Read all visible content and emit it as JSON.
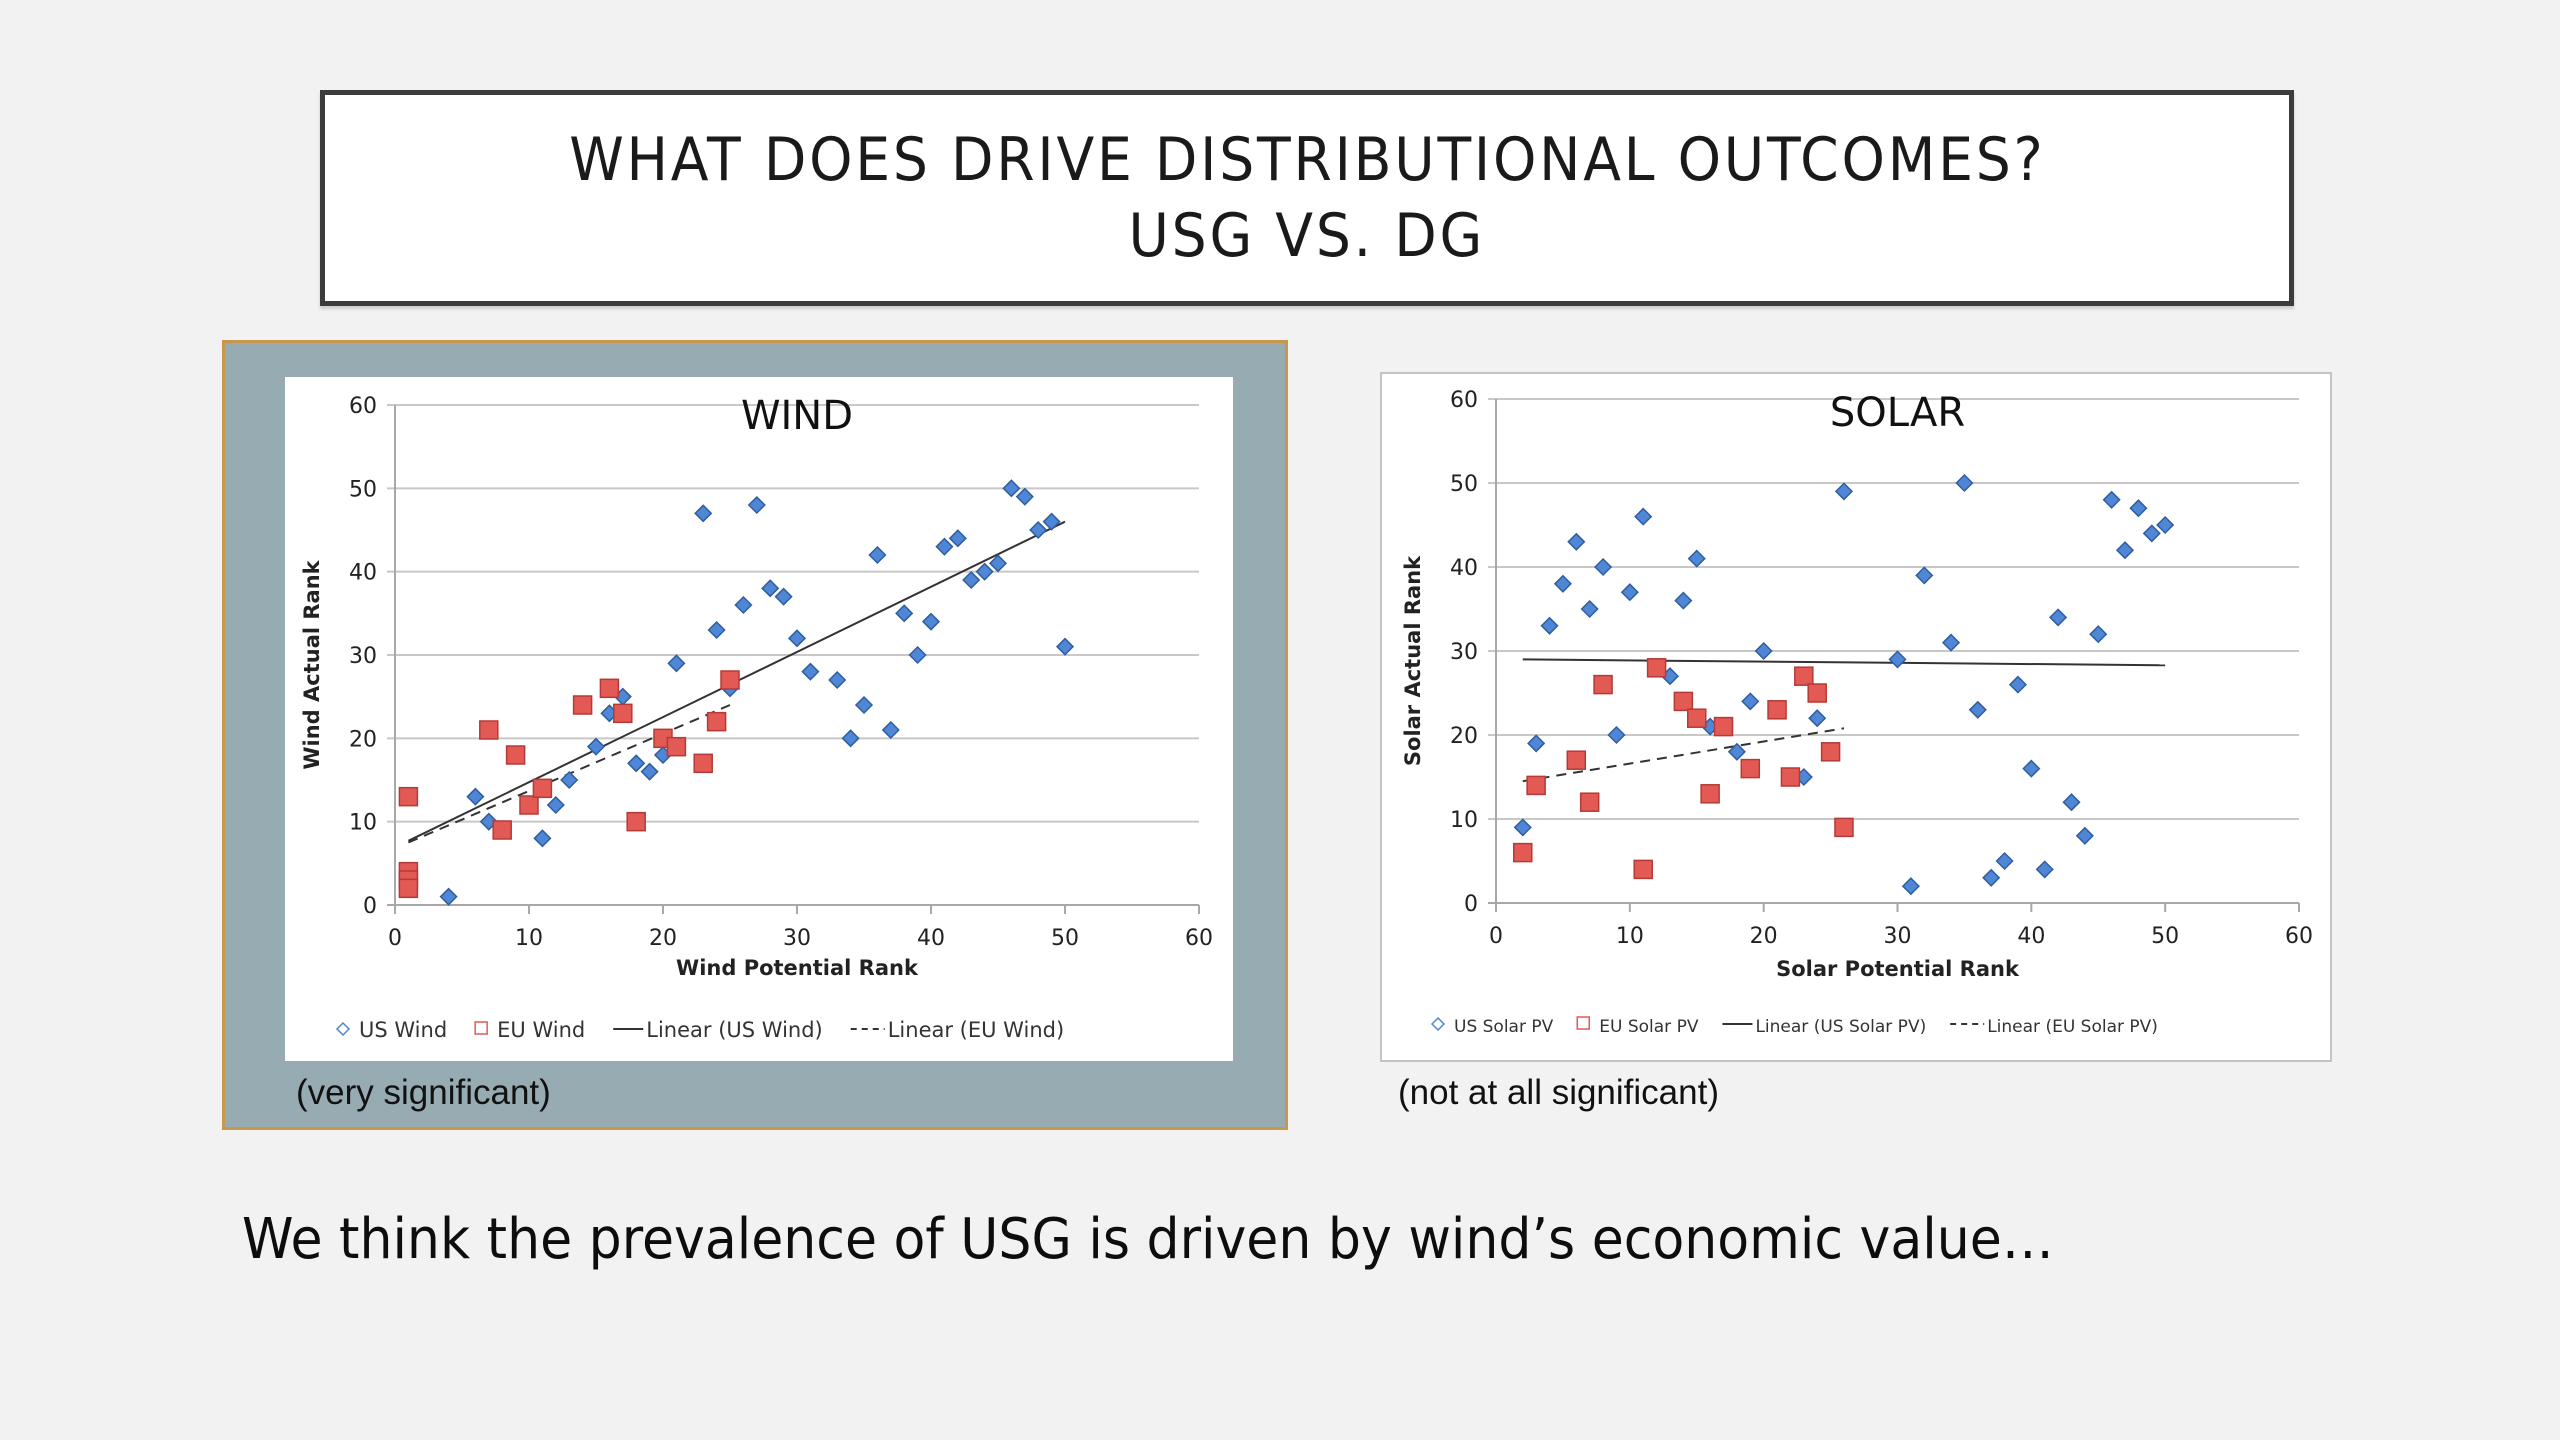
{
  "slide": {
    "title_line1": "WHAT DOES DRIVE DISTRIBUTIONAL OUTCOMES?",
    "title_line2": "USG VS. DG",
    "wind_caption": "(very significant)",
    "solar_caption": "(not at all significant)",
    "bottom_text": "We think the prevalence of USG is driven by wind’s economic value…"
  },
  "colors": {
    "us_marker": "#4f86d6",
    "us_marker_stroke": "#2f5e9e",
    "eu_marker": "#e35a55",
    "eu_marker_stroke": "#b33a36",
    "trend_line": "#333333",
    "grid": "#c8c8c8",
    "wind_frame_bg": "#97abb3",
    "wind_frame_border": "#c8974a"
  },
  "chart_data": [
    {
      "type": "scatter",
      "title": "WIND",
      "xlabel": "Wind Potential Rank",
      "ylabel": "Wind Actual Rank",
      "xlim": [
        0,
        60
      ],
      "ylim": [
        0,
        60
      ],
      "xticks": [
        "0",
        "10",
        "20",
        "30",
        "40",
        "50",
        "60"
      ],
      "yticks": [
        "0",
        "10",
        "20",
        "30",
        "40",
        "50",
        "60"
      ],
      "grid": "horizontal",
      "legend_position": "bottom",
      "legend": [
        "US Wind",
        "EU Wind",
        "Linear (US Wind)",
        "Linear (EU Wind)"
      ],
      "series": [
        {
          "name": "US Wind",
          "marker": "diamond",
          "points": [
            [
              4,
              1
            ],
            [
              6,
              13
            ],
            [
              7,
              10
            ],
            [
              11,
              8
            ],
            [
              12,
              12
            ],
            [
              13,
              15
            ],
            [
              15,
              19
            ],
            [
              16,
              23
            ],
            [
              17,
              25
            ],
            [
              18,
              17
            ],
            [
              19,
              16
            ],
            [
              20,
              18
            ],
            [
              21,
              29
            ],
            [
              23,
              47
            ],
            [
              24,
              33
            ],
            [
              25,
              26
            ],
            [
              26,
              36
            ],
            [
              27,
              48
            ],
            [
              28,
              38
            ],
            [
              29,
              37
            ],
            [
              30,
              32
            ],
            [
              31,
              28
            ],
            [
              33,
              27
            ],
            [
              34,
              20
            ],
            [
              35,
              24
            ],
            [
              36,
              42
            ],
            [
              37,
              21
            ],
            [
              38,
              35
            ],
            [
              39,
              30
            ],
            [
              40,
              34
            ],
            [
              41,
              43
            ],
            [
              42,
              44
            ],
            [
              43,
              39
            ],
            [
              44,
              40
            ],
            [
              45,
              41
            ],
            [
              46,
              50
            ],
            [
              47,
              49
            ],
            [
              48,
              45
            ],
            [
              49,
              46
            ],
            [
              50,
              31
            ]
          ]
        },
        {
          "name": "EU Wind",
          "marker": "square",
          "points": [
            [
              1,
              13
            ],
            [
              1,
              4
            ],
            [
              1,
              3
            ],
            [
              1,
              2
            ],
            [
              7,
              21
            ],
            [
              8,
              9
            ],
            [
              9,
              18
            ],
            [
              10,
              12
            ],
            [
              11,
              14
            ],
            [
              14,
              24
            ],
            [
              16,
              26
            ],
            [
              17,
              23
            ],
            [
              18,
              10
            ],
            [
              20,
              20
            ],
            [
              21,
              19
            ],
            [
              23,
              17
            ],
            [
              24,
              22
            ],
            [
              25,
              27
            ]
          ]
        }
      ],
      "trendlines": [
        {
          "name": "Linear (US Wind)",
          "style": "solid",
          "from": [
            1,
            7.7
          ],
          "to": [
            50,
            46
          ]
        },
        {
          "name": "Linear (EU Wind)",
          "style": "dashed",
          "from": [
            1,
            7.5
          ],
          "to": [
            25,
            24
          ]
        }
      ],
      "annotation": "(very significant)"
    },
    {
      "type": "scatter",
      "title": "SOLAR",
      "xlabel": "Solar Potential Rank",
      "ylabel": "Solar Actual Rank",
      "xlim": [
        0,
        60
      ],
      "ylim": [
        0,
        60
      ],
      "xticks": [
        "0",
        "10",
        "20",
        "30",
        "40",
        "50",
        "60"
      ],
      "yticks": [
        "0",
        "10",
        "20",
        "30",
        "40",
        "50",
        "60"
      ],
      "grid": "horizontal",
      "legend_position": "bottom",
      "legend": [
        "US Solar PV",
        "EU Solar PV",
        "Linear (US Solar PV)",
        "Linear (EU Solar PV)"
      ],
      "series": [
        {
          "name": "US Solar PV",
          "marker": "diamond",
          "points": [
            [
              2,
              9
            ],
            [
              3,
              19
            ],
            [
              4,
              33
            ],
            [
              5,
              38
            ],
            [
              6,
              43
            ],
            [
              7,
              35
            ],
            [
              8,
              40
            ],
            [
              9,
              20
            ],
            [
              10,
              37
            ],
            [
              11,
              46
            ],
            [
              13,
              27
            ],
            [
              14,
              36
            ],
            [
              15,
              41
            ],
            [
              16,
              21
            ],
            [
              18,
              18
            ],
            [
              19,
              24
            ],
            [
              20,
              30
            ],
            [
              23,
              15
            ],
            [
              24,
              22
            ],
            [
              26,
              49
            ],
            [
              30,
              29
            ],
            [
              31,
              2
            ],
            [
              32,
              39
            ],
            [
              34,
              31
            ],
            [
              35,
              50
            ],
            [
              36,
              23
            ],
            [
              37,
              3
            ],
            [
              38,
              5
            ],
            [
              39,
              26
            ],
            [
              40,
              16
            ],
            [
              41,
              4
            ],
            [
              42,
              34
            ],
            [
              43,
              12
            ],
            [
              44,
              8
            ],
            [
              45,
              32
            ],
            [
              46,
              48
            ],
            [
              47,
              42
            ],
            [
              48,
              47
            ],
            [
              49,
              44
            ],
            [
              50,
              45
            ]
          ]
        },
        {
          "name": "EU Solar PV",
          "marker": "square",
          "points": [
            [
              2,
              6
            ],
            [
              3,
              14
            ],
            [
              6,
              17
            ],
            [
              7,
              12
            ],
            [
              8,
              26
            ],
            [
              11,
              4
            ],
            [
              12,
              28
            ],
            [
              14,
              24
            ],
            [
              15,
              22
            ],
            [
              16,
              13
            ],
            [
              17,
              21
            ],
            [
              19,
              16
            ],
            [
              21,
              23
            ],
            [
              22,
              15
            ],
            [
              23,
              27
            ],
            [
              24,
              25
            ],
            [
              25,
              18
            ],
            [
              26,
              9
            ]
          ]
        }
      ],
      "trendlines": [
        {
          "name": "Linear (US Solar PV)",
          "style": "solid",
          "from": [
            2,
            29
          ],
          "to": [
            50,
            28.3
          ]
        },
        {
          "name": "Linear (EU Solar PV)",
          "style": "dashed",
          "from": [
            2,
            14.5
          ],
          "to": [
            26,
            20.8
          ]
        }
      ],
      "annotation": "(not at all significant)"
    }
  ]
}
